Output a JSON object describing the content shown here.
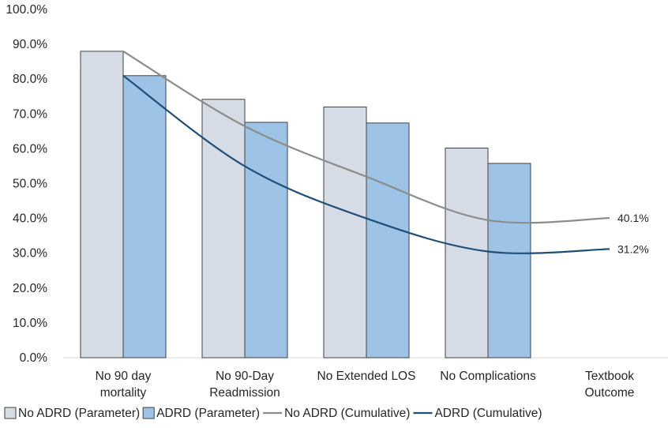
{
  "chart_data": {
    "type": "bar",
    "categories": [
      [
        "No 90 day",
        "mortality"
      ],
      [
        "No 90-Day",
        "Readmission"
      ],
      [
        "No Extended LOS"
      ],
      [
        "No Complications"
      ],
      [
        "Textbook",
        "Outcome"
      ]
    ],
    "ylim": [
      0,
      100
    ],
    "yticks": [
      0,
      10,
      20,
      30,
      40,
      50,
      60,
      70,
      80,
      90,
      100
    ],
    "ytick_labels": [
      "0.0%",
      "10.0%",
      "20.0%",
      "30.0%",
      "40.0%",
      "50.0%",
      "60.0%",
      "70.0%",
      "80.0%",
      "90.0%",
      "100.0%"
    ],
    "grid": false,
    "legend_position": "bottom",
    "bar_series": [
      {
        "name": "No ADRD (Parameter)",
        "values": [
          88.0,
          74.2,
          72.0,
          60.2,
          null
        ],
        "color": "#d6dce5",
        "stroke": "#404040"
      },
      {
        "name": "ADRD (Parameter)",
        "values": [
          81.0,
          67.6,
          67.4,
          55.8,
          null
        ],
        "color": "#9dc3e6",
        "stroke": "#404040"
      }
    ],
    "line_series": [
      {
        "name": "No ADRD (Cumulative)",
        "values": [
          88.0,
          66.5,
          52.0,
          39.5,
          40.1
        ],
        "color": "#8c8c8c",
        "end_label": "40.1%"
      },
      {
        "name": "ADRD (Cumulative)",
        "values": [
          81.0,
          55.0,
          40.0,
          30.5,
          31.2
        ],
        "color": "#1f4e79",
        "end_label": "31.2%"
      }
    ]
  }
}
